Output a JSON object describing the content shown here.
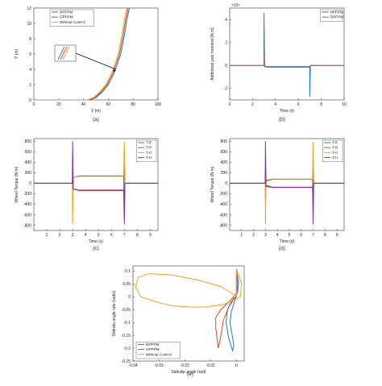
{
  "figure": {
    "panel_labels": [
      "(a)",
      "(b)",
      "(c)",
      "(d)",
      "(e)"
    ]
  },
  "chart_data": [
    {
      "id": "a",
      "type": "line",
      "xlabel": "X (m)",
      "ylabel": "Y (m)",
      "xlim": [
        0,
        100
      ],
      "ylim": [
        0,
        12
      ],
      "xticks": [
        0,
        20,
        40,
        60,
        80,
        100
      ],
      "yticks": [
        0,
        2,
        4,
        6,
        8,
        10,
        12
      ],
      "grid": false,
      "legend": "top-left",
      "inset": true,
      "series": [
        {
          "name": "NPPPM",
          "color": "#1f77d4",
          "x": [
            0,
            45,
            50,
            55,
            60,
            65,
            70,
            73,
            75,
            77
          ],
          "y": [
            0,
            0,
            0.3,
            1,
            2,
            3.6,
            6,
            8.5,
            10.5,
            12
          ]
        },
        {
          "name": "OPPPM",
          "color": "#d94a1a",
          "x": [
            0,
            44,
            49,
            54,
            59,
            64,
            69,
            72,
            74,
            76
          ],
          "y": [
            0,
            0,
            0.3,
            1,
            2,
            3.6,
            6,
            8.5,
            10.5,
            12
          ]
        },
        {
          "name": "Without Control",
          "color": "#f0a020",
          "x": [
            0,
            43,
            48,
            53,
            58,
            63,
            68,
            71,
            73,
            75
          ],
          "y": [
            0,
            0,
            0.3,
            1,
            2,
            3.6,
            6,
            8.5,
            10.5,
            12
          ]
        }
      ]
    },
    {
      "id": "b",
      "type": "line",
      "xlabel": "Time (s)",
      "ylabel": "Additional yaw moment (N.m)",
      "exponent": "×10⁴",
      "xlim": [
        0,
        10
      ],
      "ylim": [
        -3,
        5
      ],
      "xticks": [
        0,
        2,
        4,
        6,
        8,
        10
      ],
      "yticks": [
        -2,
        0,
        2,
        4
      ],
      "grid": false,
      "legend": "top-right",
      "series": [
        {
          "name": "NPPPM",
          "color": "#1f77d4",
          "x": [
            0,
            2.99,
            3,
            3.05,
            3.3,
            6.9,
            6.99,
            7,
            7.05,
            10
          ],
          "y": [
            0,
            0,
            4.6,
            -0.05,
            -0.1,
            -0.1,
            -0.1,
            -2.7,
            0,
            0
          ]
        },
        {
          "name": "OPPPM",
          "color": "#d94a1a",
          "x": [
            0,
            2.99,
            3,
            3.05,
            3.3,
            6.9,
            6.99,
            7,
            7.05,
            10
          ],
          "y": [
            0,
            0,
            1.0,
            -0.1,
            -0.15,
            -0.15,
            -0.15,
            -0.2,
            0,
            0
          ]
        }
      ]
    },
    {
      "id": "c",
      "type": "line",
      "xlabel": "Time (s)",
      "ylabel": "Wheel Torque (N.m)",
      "xlim": [
        0,
        9.6
      ],
      "ylim": [
        -900,
        850
      ],
      "xticks": [
        1,
        2,
        3,
        4,
        5,
        6,
        7,
        8,
        9
      ],
      "yticks": [
        -800,
        -600,
        -400,
        -200,
        0,
        200,
        400,
        600,
        800
      ],
      "grid": false,
      "legend": "top-right",
      "series": [
        {
          "name": "T-fl",
          "color": "#1f77d4",
          "x": [
            0,
            2.98,
            3,
            3.05,
            3.5,
            6.95,
            7,
            7.05,
            9.6
          ],
          "y": [
            0,
            0,
            -300,
            110,
            140,
            140,
            -500,
            0,
            0
          ]
        },
        {
          "name": "T-fr",
          "color": "#d94a1a",
          "x": [
            0,
            2.98,
            3,
            3.05,
            3.5,
            6.95,
            7,
            7.05,
            9.6
          ],
          "y": [
            0,
            0,
            300,
            -110,
            -140,
            -140,
            500,
            0,
            0
          ]
        },
        {
          "name": "T-rl",
          "color": "#f0a020",
          "x": [
            0,
            2.98,
            3,
            3.05,
            3.5,
            6.95,
            7,
            7.05,
            9.6
          ],
          "y": [
            0,
            0,
            -780,
            110,
            130,
            130,
            790,
            0,
            0
          ]
        },
        {
          "name": "T-rr",
          "color": "#7b2fa6",
          "x": [
            0,
            2.98,
            3,
            3.05,
            3.5,
            6.95,
            7,
            7.05,
            9.6
          ],
          "y": [
            0,
            0,
            800,
            -110,
            -130,
            -130,
            -780,
            0,
            0
          ]
        }
      ]
    },
    {
      "id": "d",
      "type": "line",
      "xlabel": "Time (s)",
      "ylabel": "Wheel Torque (N.m)",
      "xlim": [
        0,
        9.6
      ],
      "ylim": [
        -900,
        850
      ],
      "xticks": [
        1,
        2,
        3,
        4,
        5,
        6,
        7,
        8,
        9
      ],
      "yticks": [
        -800,
        -600,
        -400,
        -200,
        0,
        200,
        400,
        600,
        800
      ],
      "grid": false,
      "legend": "top-right",
      "series": [
        {
          "name": "T-fl",
          "color": "#1f77d4",
          "x": [
            0,
            2.98,
            3,
            3.05,
            3.6,
            6.95,
            7,
            7.05,
            9.6
          ],
          "y": [
            0,
            0,
            -250,
            40,
            75,
            75,
            -350,
            0,
            0
          ]
        },
        {
          "name": "T-fr",
          "color": "#d94a1a",
          "x": [
            0,
            2.98,
            3,
            3.05,
            3.6,
            6.95,
            7,
            7.05,
            9.6
          ],
          "y": [
            0,
            0,
            250,
            -40,
            -75,
            -75,
            350,
            0,
            0
          ]
        },
        {
          "name": "T-rl",
          "color": "#f0a020",
          "x": [
            0,
            2.98,
            3,
            3.05,
            3.6,
            6.95,
            7,
            7.05,
            9.6
          ],
          "y": [
            0,
            0,
            -780,
            60,
            80,
            80,
            790,
            0,
            0
          ]
        },
        {
          "name": "T-rr",
          "color": "#7b2fa6",
          "x": [
            0,
            2.98,
            3,
            3.05,
            3.6,
            6.95,
            7,
            7.05,
            9.6
          ],
          "y": [
            0,
            0,
            800,
            -60,
            -80,
            -80,
            -780,
            0,
            0
          ]
        }
      ]
    },
    {
      "id": "e",
      "type": "line",
      "xlabel": "Sideslip angle (rad)",
      "ylabel": "Sideslip angle rate (rad/s)",
      "xlim": [
        -0.04,
        0.003
      ],
      "ylim": [
        -0.25,
        0.12
      ],
      "xticks": [
        -0.04,
        -0.03,
        -0.02,
        -0.01,
        0
      ],
      "yticks": [
        -0.25,
        -0.2,
        -0.15,
        -0.1,
        -0.05,
        0,
        0.05,
        0.1
      ],
      "grid": false,
      "legend": "bottom-left",
      "series": [
        {
          "name": "NPPPM",
          "color": "#1f77d4",
          "x": [
            0,
            0,
            0.0005,
            0.0002,
            -0.0008,
            -0.002,
            -0.0025,
            -0.0018,
            -0.001,
            -0.0015,
            -0.003,
            -0.004,
            -0.0035,
            -0.002,
            -0.001,
            0
          ],
          "y": [
            0,
            0.09,
            0.05,
            0.01,
            -0.02,
            -0.06,
            -0.1,
            -0.14,
            -0.19,
            -0.21,
            -0.16,
            -0.1,
            -0.05,
            -0.02,
            -0.005,
            0
          ]
        },
        {
          "name": "OPPPM",
          "color": "#d94a1a",
          "x": [
            0,
            0,
            0.0008,
            0.0005,
            -0.002,
            -0.004,
            -0.006,
            -0.008,
            -0.008,
            -0.007,
            -0.006,
            -0.005,
            -0.003,
            -0.001,
            0
          ],
          "y": [
            0,
            0.1,
            0.06,
            0.02,
            -0.01,
            -0.03,
            -0.05,
            -0.08,
            -0.12,
            -0.2,
            -0.15,
            -0.09,
            -0.04,
            -0.01,
            0
          ]
        },
        {
          "name": "Without Control",
          "color": "#f0a020",
          "x": [
            0,
            0,
            0.002,
            0.0015,
            -0.005,
            -0.012,
            -0.018,
            -0.025,
            -0.031,
            -0.037,
            -0.039,
            -0.038,
            -0.034,
            -0.025,
            -0.015,
            -0.006,
            -0.002,
            0
          ],
          "y": [
            0,
            0.11,
            0.05,
            0.0,
            -0.03,
            -0.04,
            -0.04,
            -0.035,
            -0.02,
            0.0,
            0.04,
            0.075,
            0.09,
            0.085,
            0.065,
            0.04,
            0.015,
            0
          ]
        }
      ]
    }
  ]
}
